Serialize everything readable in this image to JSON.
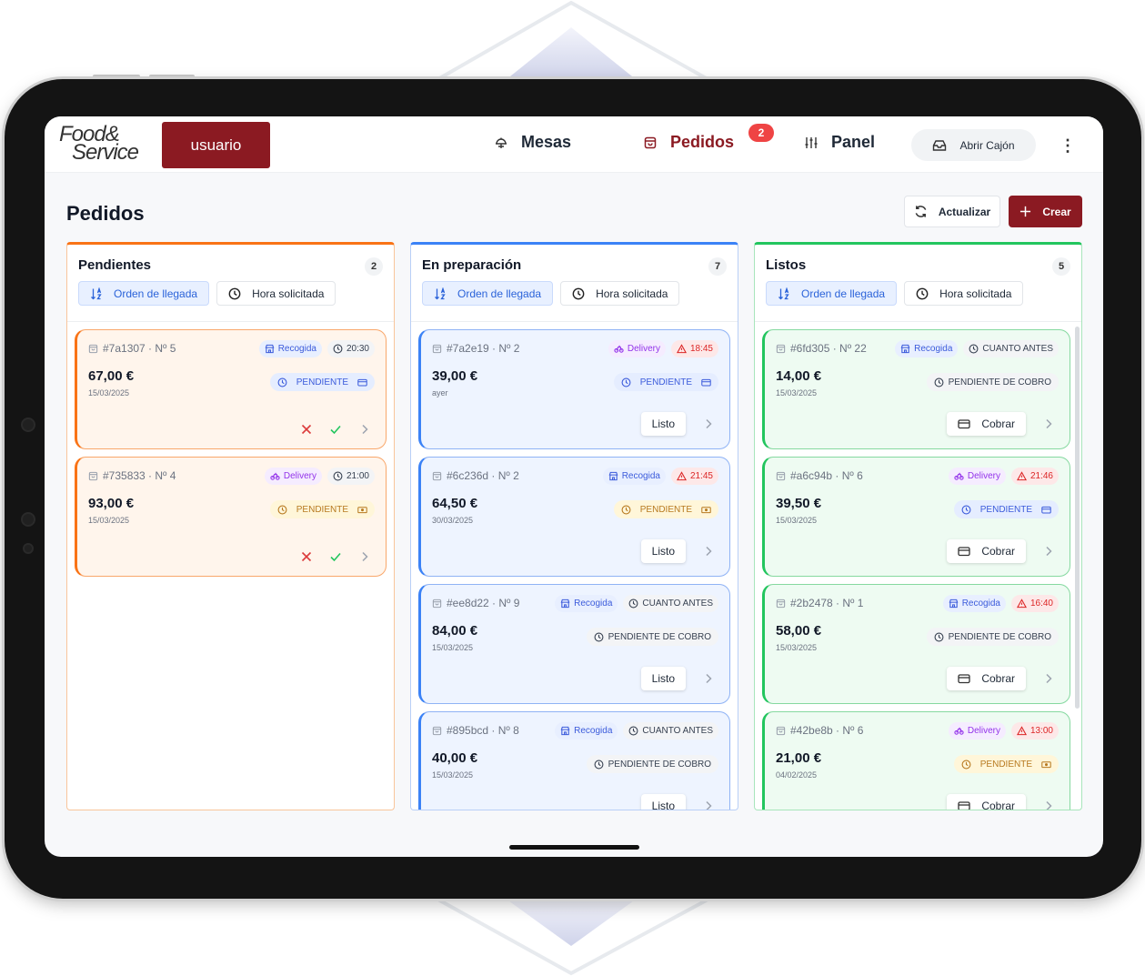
{
  "app": {
    "logo_line1": "Food&",
    "logo_line2": "Service",
    "user_label": "usuario"
  },
  "nav": {
    "items": [
      {
        "label": "Mesas",
        "icon": "table-dome-icon",
        "active": false
      },
      {
        "label": "Pedidos",
        "icon": "shopping-bag-icon",
        "active": true,
        "badge": "2"
      },
      {
        "label": "Panel",
        "icon": "sliders-icon",
        "active": false
      }
    ],
    "drawer_label": "Abrir Cajón",
    "more_icon": "kebab-menu-icon"
  },
  "page": {
    "title": "Pedidos",
    "refresh_label": "Actualizar",
    "create_label": "Crear"
  },
  "colors": {
    "brand": "#8b1a22",
    "pending": "#f97316",
    "preparing": "#3b82f6",
    "ready": "#22c55e"
  },
  "columns": [
    {
      "key": "pendientes",
      "title": "Pendientes",
      "count": "2",
      "sort_arrival": "Orden de llegada",
      "sort_time": "Hora solicitada",
      "cards": [
        {
          "id": "#7a1307 · Nº 5",
          "type": "Recogida",
          "time": "20:30",
          "time_alert": false,
          "price": "67,00 €",
          "date": "15/03/2025",
          "status": "PENDIENTE",
          "status_kind": "card"
        },
        {
          "id": "#735833 · Nº 4",
          "type": "Delivery",
          "time": "21:00",
          "time_alert": false,
          "price": "93,00 €",
          "date": "15/03/2025",
          "status": "PENDIENTE",
          "status_kind": "cash"
        }
      ]
    },
    {
      "key": "preparacion",
      "title": "En preparación",
      "count": "7",
      "sort_arrival": "Orden de llegada",
      "sort_time": "Hora solicitada",
      "action_label": "Listo",
      "cards": [
        {
          "id": "#7a2e19 · Nº 2",
          "type": "Delivery",
          "time": "18:45",
          "time_alert": true,
          "price": "39,00 €",
          "date": "ayer",
          "status": "PENDIENTE",
          "status_kind": "card"
        },
        {
          "id": "#6c236d · Nº 2",
          "type": "Recogida",
          "time": "21:45",
          "time_alert": true,
          "price": "64,50 €",
          "date": "30/03/2025",
          "status": "PENDIENTE",
          "status_kind": "cash"
        },
        {
          "id": "#ee8d22 · Nº 9",
          "type": "Recogida",
          "time": "CUANTO ANTES",
          "time_alert": false,
          "price": "84,00 €",
          "date": "15/03/2025",
          "status": "PENDIENTE DE COBRO",
          "status_kind": "cobro"
        },
        {
          "id": "#895bcd · Nº 8",
          "type": "Recogida",
          "time": "CUANTO ANTES",
          "time_alert": false,
          "price": "40,00 €",
          "date": "15/03/2025",
          "status": "PENDIENTE DE COBRO",
          "status_kind": "cobro"
        }
      ]
    },
    {
      "key": "listos",
      "title": "Listos",
      "count": "5",
      "sort_arrival": "Orden de llegada",
      "sort_time": "Hora solicitada",
      "action_label": "Cobrar",
      "cards": [
        {
          "id": "#6fd305 · Nº 22",
          "type": "Recogida",
          "time": "CUANTO ANTES",
          "time_alert": false,
          "price": "14,00 €",
          "date": "15/03/2025",
          "status": "PENDIENTE DE COBRO",
          "status_kind": "cobro"
        },
        {
          "id": "#a6c94b · Nº 6",
          "type": "Delivery",
          "time": "21:46",
          "time_alert": true,
          "price": "39,50 €",
          "date": "15/03/2025",
          "status": "PENDIENTE",
          "status_kind": "card"
        },
        {
          "id": "#2b2478 · Nº 1",
          "type": "Recogida",
          "time": "16:40",
          "time_alert": true,
          "price": "58,00 €",
          "date": "15/03/2025",
          "status": "PENDIENTE DE COBRO",
          "status_kind": "cobro"
        },
        {
          "id": "#42be8b · Nº 6",
          "type": "Delivery",
          "time": "13:00",
          "time_alert": true,
          "price": "21,00 €",
          "date": "04/02/2025",
          "status": "PENDIENTE",
          "status_kind": "cash"
        }
      ]
    }
  ]
}
